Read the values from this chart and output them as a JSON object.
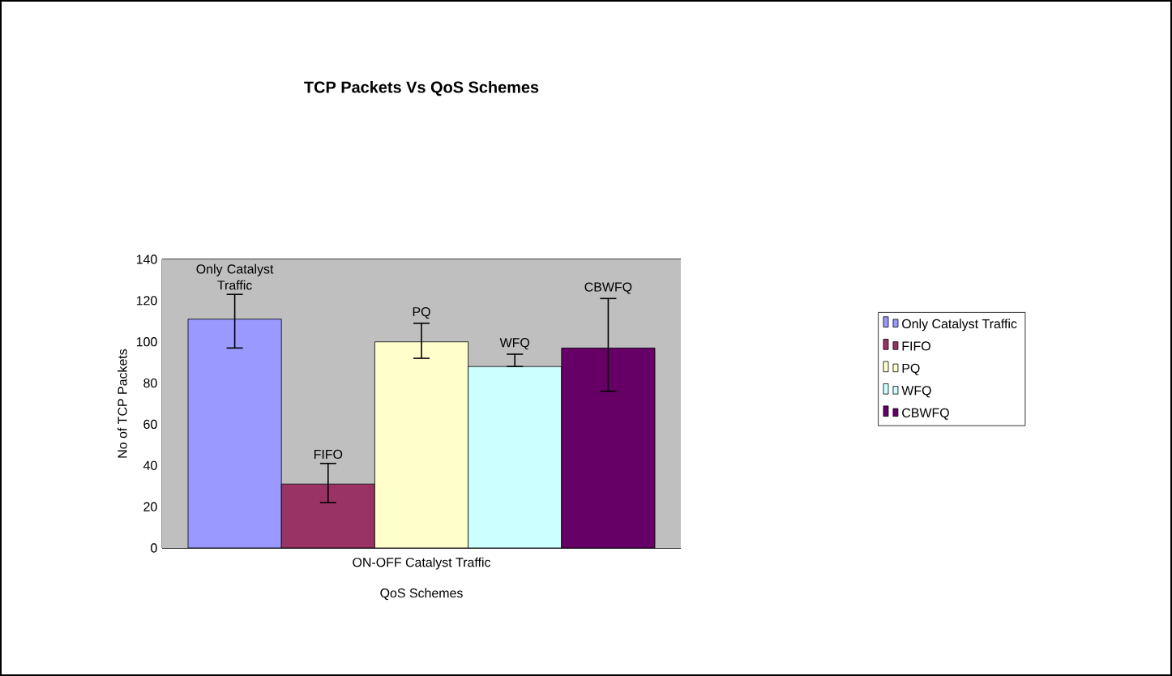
{
  "chart_data": {
    "type": "bar",
    "title": "TCP Packets Vs QoS Schemes",
    "xlabel": "QoS Schemes",
    "ylabel": "No of TCP Packets",
    "categories": [
      "ON-OFF Catalyst Traffic"
    ],
    "series": [
      {
        "name": "Only Catalyst Traffic",
        "color": "#9999ff",
        "values": [
          111
        ],
        "errors": [
          [
            97,
            123
          ]
        ]
      },
      {
        "name": "FIFO",
        "color": "#993366",
        "values": [
          31
        ],
        "errors": [
          [
            22,
            41
          ]
        ]
      },
      {
        "name": "PQ",
        "color": "#ffffcc",
        "values": [
          100
        ],
        "errors": [
          [
            92,
            109
          ]
        ]
      },
      {
        "name": "WFQ",
        "color": "#ccffff",
        "values": [
          88
        ],
        "errors": [
          [
            88,
            94
          ]
        ]
      },
      {
        "name": "CBWFQ",
        "color": "#660066",
        "values": [
          97
        ],
        "errors": [
          [
            76,
            121
          ]
        ]
      }
    ],
    "ylim": [
      0,
      140
    ],
    "yticks": [
      0,
      20,
      40,
      60,
      80,
      100,
      120,
      140
    ],
    "grid": "y",
    "legend": "right"
  }
}
